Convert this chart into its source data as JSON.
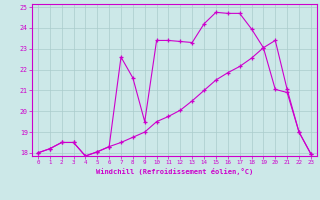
{
  "xlabel": "Windchill (Refroidissement éolien,°C)",
  "bg_color": "#cce8e8",
  "line_color": "#cc00cc",
  "grid_color": "#aacccc",
  "xlim": [
    -0.5,
    23.5
  ],
  "ylim": [
    17.85,
    25.15
  ],
  "xticks": [
    0,
    1,
    2,
    3,
    4,
    5,
    6,
    7,
    8,
    9,
    10,
    11,
    12,
    13,
    14,
    15,
    16,
    17,
    18,
    19,
    20,
    21,
    22,
    23
  ],
  "yticks": [
    18,
    19,
    20,
    21,
    22,
    23,
    24,
    25
  ],
  "line1_x": [
    0,
    1,
    2,
    3,
    4,
    5,
    6,
    7,
    8,
    9,
    10,
    11,
    12,
    13,
    14,
    15,
    16,
    17,
    18,
    19,
    20,
    21,
    22,
    23
  ],
  "line1_y": [
    18.0,
    18.2,
    18.5,
    18.5,
    17.85,
    18.05,
    18.3,
    22.6,
    21.6,
    19.5,
    23.4,
    23.4,
    23.35,
    23.3,
    24.2,
    24.75,
    24.7,
    24.7,
    23.95,
    23.05,
    21.05,
    20.9,
    19.0,
    17.95
  ],
  "line2_x": [
    0,
    1,
    2,
    3,
    4,
    5,
    6,
    7,
    8,
    9,
    10,
    11,
    12,
    13,
    14,
    15,
    16,
    17,
    18,
    19,
    20,
    21,
    22,
    23
  ],
  "line2_y": [
    18.0,
    18.2,
    18.5,
    18.5,
    17.85,
    18.05,
    18.3,
    18.5,
    18.75,
    19.0,
    19.5,
    19.75,
    20.05,
    20.5,
    21.0,
    21.5,
    21.85,
    22.15,
    22.55,
    23.05,
    23.4,
    21.05,
    19.0,
    17.95
  ]
}
